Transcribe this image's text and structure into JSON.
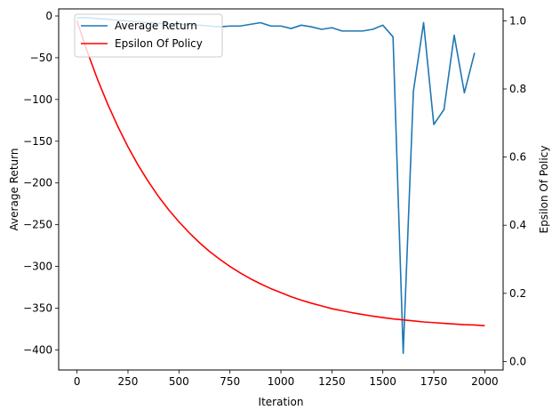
{
  "chart_data": {
    "type": "line",
    "title": "",
    "xlabel": "Iteration",
    "ylabel_left": "Average Return",
    "ylabel_right": "Epsilon Of Policy",
    "xlim": [
      -90,
      2090
    ],
    "ylim_left": [
      -424,
      8.5
    ],
    "ylim_right": [
      -0.025,
      1.035
    ],
    "xticks": [
      0,
      250,
      500,
      750,
      1000,
      1250,
      1500,
      1750,
      2000
    ],
    "yticks_left": [
      0,
      -50,
      -100,
      -150,
      -200,
      -250,
      -300,
      -350,
      -400
    ],
    "yticks_right": [
      0.0,
      0.2,
      0.4,
      0.6,
      0.8,
      1.0
    ],
    "legend_position": "upper left",
    "series": [
      {
        "name": "Average Return",
        "axis": "left",
        "color": "#1f77b4",
        "x": [
          0,
          50,
          100,
          150,
          200,
          250,
          300,
          350,
          400,
          450,
          500,
          550,
          600,
          650,
          700,
          750,
          800,
          850,
          900,
          950,
          1000,
          1050,
          1100,
          1150,
          1200,
          1250,
          1300,
          1350,
          1400,
          1450,
          1500,
          1550,
          1600,
          1650,
          1700,
          1750,
          1800,
          1850,
          1900,
          1950
        ],
        "y": [
          -2,
          -2,
          -3,
          -4,
          -5,
          -6,
          -7,
          -8,
          -9,
          -9,
          -10,
          -11,
          -11,
          -12,
          -13,
          -12,
          -12,
          -10,
          -8,
          -12,
          -12,
          -15,
          -11,
          -13,
          -16,
          -14,
          -18,
          -18,
          -18,
          -16,
          -11,
          -25,
          -404,
          -90,
          -8,
          -130,
          -112,
          -23,
          -92,
          -44
        ]
      },
      {
        "name": "Epsilon Of Policy",
        "axis": "right",
        "color": "#ff0000",
        "x": [
          0,
          50,
          100,
          150,
          200,
          250,
          300,
          350,
          400,
          450,
          500,
          550,
          600,
          650,
          700,
          750,
          800,
          850,
          900,
          950,
          1000,
          1050,
          1100,
          1150,
          1200,
          1250,
          1300,
          1350,
          1400,
          1450,
          1500,
          1550,
          1600,
          1650,
          1700,
          1750,
          1800,
          1850,
          1900,
          1950,
          2000
        ],
        "y": [
          1.0,
          0.91,
          0.829,
          0.756,
          0.69,
          0.63,
          0.576,
          0.528,
          0.484,
          0.445,
          0.41,
          0.378,
          0.349,
          0.323,
          0.3,
          0.279,
          0.26,
          0.243,
          0.228,
          0.214,
          0.202,
          0.19,
          0.18,
          0.171,
          0.163,
          0.155,
          0.149,
          0.143,
          0.138,
          0.133,
          0.129,
          0.125,
          0.122,
          0.119,
          0.116,
          0.114,
          0.112,
          0.11,
          0.108,
          0.107,
          0.105
        ]
      }
    ]
  }
}
